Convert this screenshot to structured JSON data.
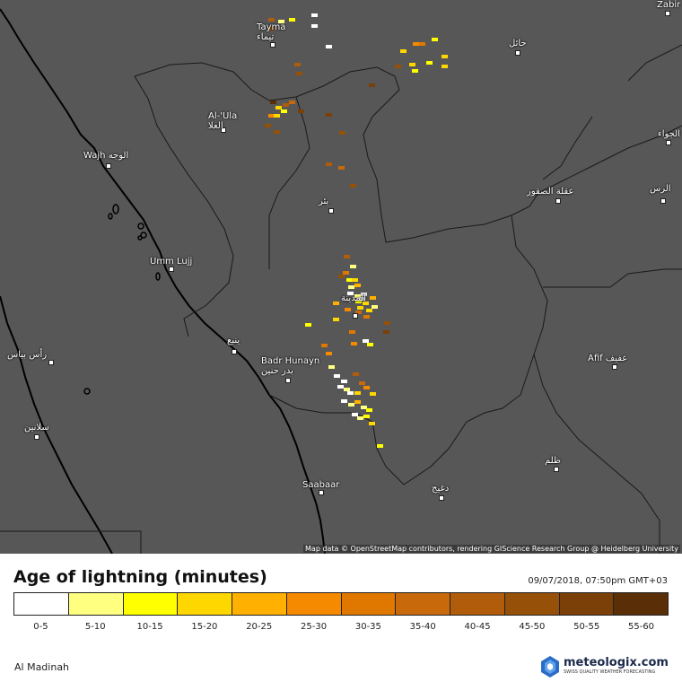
{
  "map": {
    "cities": [
      {
        "name": "Tayma",
        "name_ar": "تيماء"
      },
      {
        "name": "",
        "name_ar": "حائل"
      },
      {
        "name": "Al-'Ula",
        "name_ar": "العلا"
      },
      {
        "name": "Wajh",
        "name_ar": "الوجه"
      },
      {
        "name": "",
        "name_ar": "بئر"
      },
      {
        "name": "",
        "name_ar": "عقلة الصقور"
      },
      {
        "name": "",
        "name_ar": "الرس"
      },
      {
        "name": "Umm Lujj",
        "name_ar": ""
      },
      {
        "name": "",
        "name_ar": "المدينة"
      },
      {
        "name": "",
        "name_ar": "ينبع"
      },
      {
        "name": "Badr Hunayn",
        "name_ar": "بدر حنين"
      },
      {
        "name": "",
        "name_ar": "رأس بياس"
      },
      {
        "name": "Afif",
        "name_ar": "عفيف"
      },
      {
        "name": "",
        "name_ar": "سلانين"
      },
      {
        "name": "Saabaar",
        "name_ar": ""
      },
      {
        "name": "",
        "name_ar": "ظلم"
      },
      {
        "name": "",
        "name_ar": "دغيج"
      },
      {
        "name": "Zabir",
        "name_ar": ""
      },
      {
        "name": "",
        "name_ar": "الجواء"
      }
    ],
    "attribution": "Map data © OpenStreetMap contributors, rendering GIScience Research Group @ Heidelberg University"
  },
  "legend": {
    "title": "Age of lightning (minutes)",
    "timestamp": "09/07/2018, 07:50pm GMT+03",
    "bins": [
      {
        "label": "0-5",
        "color": "#ffffff"
      },
      {
        "label": "5-10",
        "color": "#ffff80"
      },
      {
        "label": "10-15",
        "color": "#ffff00"
      },
      {
        "label": "15-20",
        "color": "#ffd700"
      },
      {
        "label": "20-25",
        "color": "#ffb000"
      },
      {
        "label": "25-30",
        "color": "#f58a00"
      },
      {
        "label": "30-35",
        "color": "#e07800"
      },
      {
        "label": "35-40",
        "color": "#c86a0c"
      },
      {
        "label": "40-45",
        "color": "#b05c0a"
      },
      {
        "label": "45-50",
        "color": "#965008"
      },
      {
        "label": "50-55",
        "color": "#7a4008"
      },
      {
        "label": "55-60",
        "color": "#5a2e06"
      }
    ]
  },
  "footer": {
    "region": "Al Madinah",
    "brand": "meteologix.com",
    "tagline": "SWISS QUALITY WEATHER FORECASTING"
  }
}
